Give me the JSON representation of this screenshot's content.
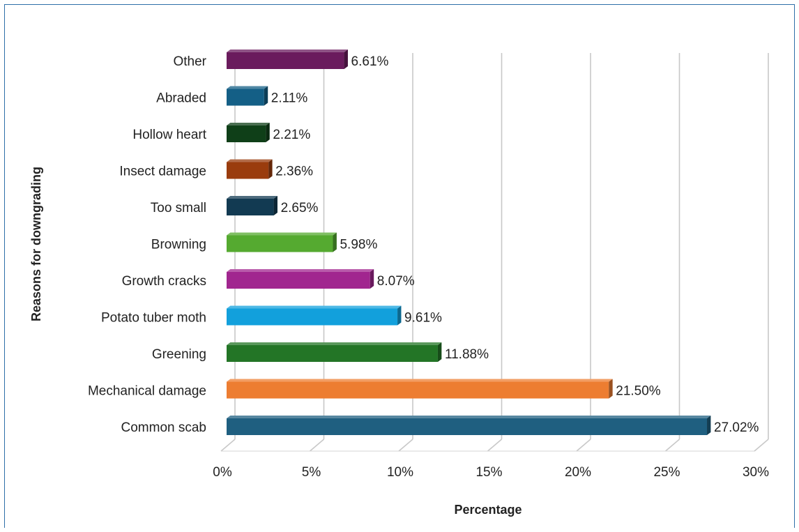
{
  "chart_data": {
    "type": "bar",
    "orientation": "horizontal",
    "style": "3d-clustered-bar",
    "title": "",
    "xlabel": "Percentage",
    "ylabel": "Reasons for downgrading",
    "xlim": [
      0,
      30
    ],
    "x_ticks": [
      "0%",
      "5%",
      "10%",
      "15%",
      "20%",
      "25%",
      "30%"
    ],
    "x_tick_values": [
      0,
      5,
      10,
      15,
      20,
      25,
      30
    ],
    "gridlines": true,
    "legend": "none",
    "categories": [
      "Common scab",
      "Mechanical damage",
      "Greening",
      "Potato tuber moth",
      "Growth cracks",
      "Browning",
      "Too small",
      "Insect damage",
      "Hollow heart",
      "Abraded",
      "Other"
    ],
    "values": [
      27.02,
      21.5,
      11.88,
      9.61,
      8.07,
      5.98,
      2.65,
      2.36,
      2.21,
      2.11,
      6.61
    ],
    "value_labels": [
      "27.02%",
      "21.50%",
      "11.88%",
      "9.61%",
      "8.07%",
      "5.98%",
      "2.65%",
      "2.36%",
      "2.21%",
      "2.11%",
      "6.61%"
    ],
    "colors": [
      "#1f5f80",
      "#ed7d31",
      "#237526",
      "#12a0dc",
      "#a1268f",
      "#55aa30",
      "#123a52",
      "#9a3c0d",
      "#0f3f18",
      "#145f86",
      "#6a1b5d"
    ]
  }
}
